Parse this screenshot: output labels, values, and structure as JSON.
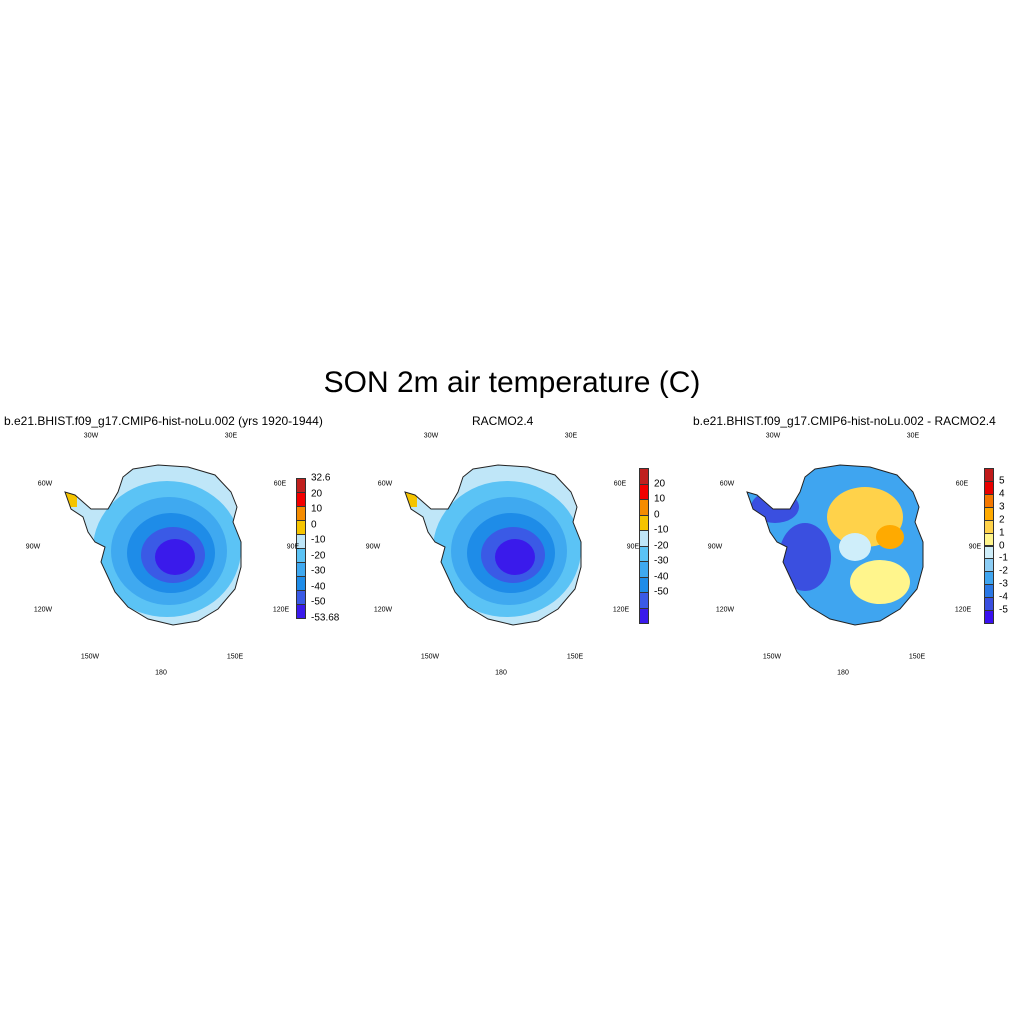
{
  "figure": {
    "title": "SON 2m air temperature (C)"
  },
  "lon_labels": [
    "30W",
    "30E",
    "60W",
    "60E",
    "90W",
    "90E",
    "120W",
    "120E",
    "150W",
    "150E",
    "180"
  ],
  "panels": [
    {
      "title": "b.e21.BHIST.f09_g17.CMIP6-hist-noLu.002 (yrs 1920-1944)",
      "colorbar": {
        "colors": [
          "#3a1aeb",
          "#3a5ae6",
          "#1e8ce8",
          "#3fa9f0",
          "#5bc3f5",
          "#bfe6f8",
          "#f5c400",
          "#f58c00",
          "#f20000",
          "#c0201e"
        ],
        "labels": [
          "32.6",
          "20",
          "10",
          "0",
          "-10",
          "-20",
          "-30",
          "-40",
          "-50",
          "-53.68"
        ]
      }
    },
    {
      "title": "RACMO2.4",
      "colorbar": {
        "colors": [
          "#3a1aeb",
          "#3a5ae6",
          "#1e8ce8",
          "#3fa9f0",
          "#5bc3f5",
          "#bfe6f8",
          "#f5c400",
          "#f58c00",
          "#f20000",
          "#c0201e"
        ],
        "labels": [
          "20",
          "10",
          "0",
          "-10",
          "-20",
          "-30",
          "-40",
          "-50"
        ]
      }
    },
    {
      "title": "b.e21.BHIST.f09_g17.CMIP6-hist-noLu.002 - RACMO2.4",
      "colorbar": {
        "colors": [
          "#3a10f0",
          "#3a4fe0",
          "#2a78e6",
          "#3fa5f0",
          "#8ccdf5",
          "#cfeefa",
          "#fff58c",
          "#ffd24a",
          "#ffaa00",
          "#f57800",
          "#e80000",
          "#c01a1a"
        ],
        "labels": [
          "5",
          "4",
          "3",
          "2",
          "1",
          "0",
          "-1",
          "-2",
          "-3",
          "-4",
          "-5"
        ]
      }
    }
  ]
}
